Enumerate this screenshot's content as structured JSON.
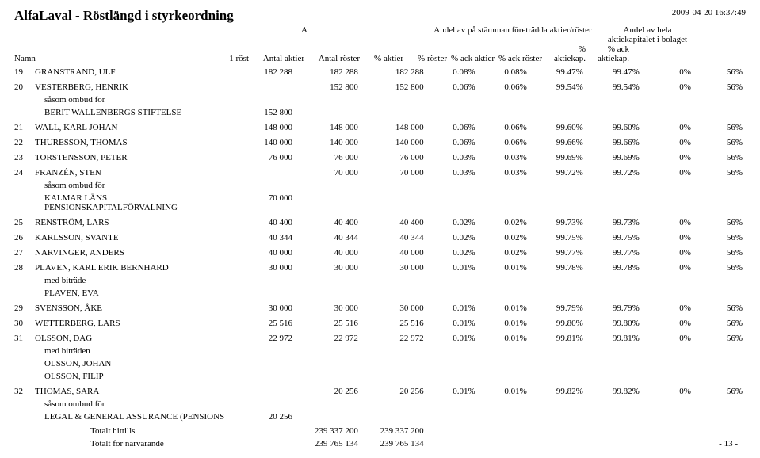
{
  "header": {
    "title": "AlfaLaval - Röstlängd i styrkeordning",
    "timestamp": "2009-04-20 16:37:49"
  },
  "columns": {
    "name": "Namn",
    "a_label": "A",
    "one_vote": "1 röst",
    "shares": "Antal aktier",
    "votes": "Antal röster",
    "group_meeting": "Andel av på stämman företrädda aktier/röster",
    "group_capital_l1": "Andel av hela",
    "group_capital_l2": "aktiekapitalet i bolaget",
    "pct_shares": "% aktier",
    "pct_votes": "% röster",
    "pct_ack_shares": "% ack aktier",
    "pct_ack_votes": "% ack röster",
    "pct_cap": "% aktiekap.",
    "pct_ack_cap": "% ack aktiekap."
  },
  "rows": [
    {
      "idx": "19",
      "name": "GRANSTRAND, ULF",
      "c1": "182 288",
      "c2": "182 288",
      "c3": "182 288",
      "p1": "0.08%",
      "p2": "0.08%",
      "p3": "99.47%",
      "p4": "99.47%",
      "p5": "0%",
      "p6": "56%"
    },
    {
      "idx": "20",
      "name": "VESTERBERG, HENRIK",
      "c1": "",
      "c2": "152 800",
      "c3": "152 800",
      "p1": "0.06%",
      "p2": "0.06%",
      "p3": "99.54%",
      "p4": "99.54%",
      "p5": "0%",
      "p6": "56%",
      "sub_label": "såsom ombud för",
      "sub_rows": [
        {
          "name": "BERIT WALLENBERGS STIFTELSE",
          "c1": "152 800"
        }
      ]
    },
    {
      "idx": "21",
      "name": "WALL, KARL JOHAN",
      "c1": "148 000",
      "c2": "148 000",
      "c3": "148 000",
      "p1": "0.06%",
      "p2": "0.06%",
      "p3": "99.60%",
      "p4": "99.60%",
      "p5": "0%",
      "p6": "56%"
    },
    {
      "idx": "22",
      "name": "THURESSON, THOMAS",
      "c1": "140 000",
      "c2": "140 000",
      "c3": "140 000",
      "p1": "0.06%",
      "p2": "0.06%",
      "p3": "99.66%",
      "p4": "99.66%",
      "p5": "0%",
      "p6": "56%"
    },
    {
      "idx": "23",
      "name": "TORSTENSSON, PETER",
      "c1": "76 000",
      "c2": "76 000",
      "c3": "76 000",
      "p1": "0.03%",
      "p2": "0.03%",
      "p3": "99.69%",
      "p4": "99.69%",
      "p5": "0%",
      "p6": "56%"
    },
    {
      "idx": "24",
      "name": "FRANZÉN, STEN",
      "c1": "",
      "c2": "70 000",
      "c3": "70 000",
      "p1": "0.03%",
      "p2": "0.03%",
      "p3": "99.72%",
      "p4": "99.72%",
      "p5": "0%",
      "p6": "56%",
      "sub_label": "såsom ombud för",
      "sub_rows": [
        {
          "name": "KALMAR LÄNS PENSIONSKAPITALFÖRVALNING",
          "c1": "70 000"
        }
      ]
    },
    {
      "idx": "25",
      "name": "RENSTRÖM, LARS",
      "c1": "40 400",
      "c2": "40 400",
      "c3": "40 400",
      "p1": "0.02%",
      "p2": "0.02%",
      "p3": "99.73%",
      "p4": "99.73%",
      "p5": "0%",
      "p6": "56%"
    },
    {
      "idx": "26",
      "name": "KARLSSON, SVANTE",
      "c1": "40 344",
      "c2": "40 344",
      "c3": "40 344",
      "p1": "0.02%",
      "p2": "0.02%",
      "p3": "99.75%",
      "p4": "99.75%",
      "p5": "0%",
      "p6": "56%"
    },
    {
      "idx": "27",
      "name": "NARVINGER, ANDERS",
      "c1": "40 000",
      "c2": "40 000",
      "c3": "40 000",
      "p1": "0.02%",
      "p2": "0.02%",
      "p3": "99.77%",
      "p4": "99.77%",
      "p5": "0%",
      "p6": "56%"
    },
    {
      "idx": "28",
      "name": "PLAVEN, KARL ERIK BERNHARD",
      "c1": "30 000",
      "c2": "30 000",
      "c3": "30 000",
      "p1": "0.01%",
      "p2": "0.01%",
      "p3": "99.78%",
      "p4": "99.78%",
      "p5": "0%",
      "p6": "56%",
      "sub_label": "med biträde",
      "sub_rows": [
        {
          "name": "PLAVEN, EVA",
          "c1": ""
        }
      ]
    },
    {
      "idx": "29",
      "name": "SVENSSON, ÅKE",
      "c1": "30 000",
      "c2": "30 000",
      "c3": "30 000",
      "p1": "0.01%",
      "p2": "0.01%",
      "p3": "99.79%",
      "p4": "99.79%",
      "p5": "0%",
      "p6": "56%"
    },
    {
      "idx": "30",
      "name": "WETTERBERG, LARS",
      "c1": "25 516",
      "c2": "25 516",
      "c3": "25 516",
      "p1": "0.01%",
      "p2": "0.01%",
      "p3": "99.80%",
      "p4": "99.80%",
      "p5": "0%",
      "p6": "56%"
    },
    {
      "idx": "31",
      "name": "OLSSON, DAG",
      "c1": "22 972",
      "c2": "22 972",
      "c3": "22 972",
      "p1": "0.01%",
      "p2": "0.01%",
      "p3": "99.81%",
      "p4": "99.81%",
      "p5": "0%",
      "p6": "56%",
      "sub_label": "med biträden",
      "sub_rows": [
        {
          "name": "OLSSON, JOHAN",
          "c1": ""
        },
        {
          "name": "OLSSON, FILIP",
          "c1": ""
        }
      ]
    },
    {
      "idx": "32",
      "name": "THOMAS, SARA",
      "c1": "",
      "c2": "20 256",
      "c3": "20 256",
      "p1": "0.01%",
      "p2": "0.01%",
      "p3": "99.82%",
      "p4": "99.82%",
      "p5": "0%",
      "p6": "56%",
      "sub_label": "såsom ombud för",
      "sub_rows": [
        {
          "name": "LEGAL & GENERAL ASSURANCE (PENSIONS",
          "c1": "20 256"
        }
      ]
    }
  ],
  "totals": {
    "hittills_label": "Totalt hittills",
    "hittills_c2": "239 337 200",
    "hittills_c3": "239 337 200",
    "narvarande_label": "Totalt för närvarande",
    "narvarande_c2": "239 765 134",
    "narvarande_c3": "239 765 134",
    "page": "- 13 -"
  }
}
